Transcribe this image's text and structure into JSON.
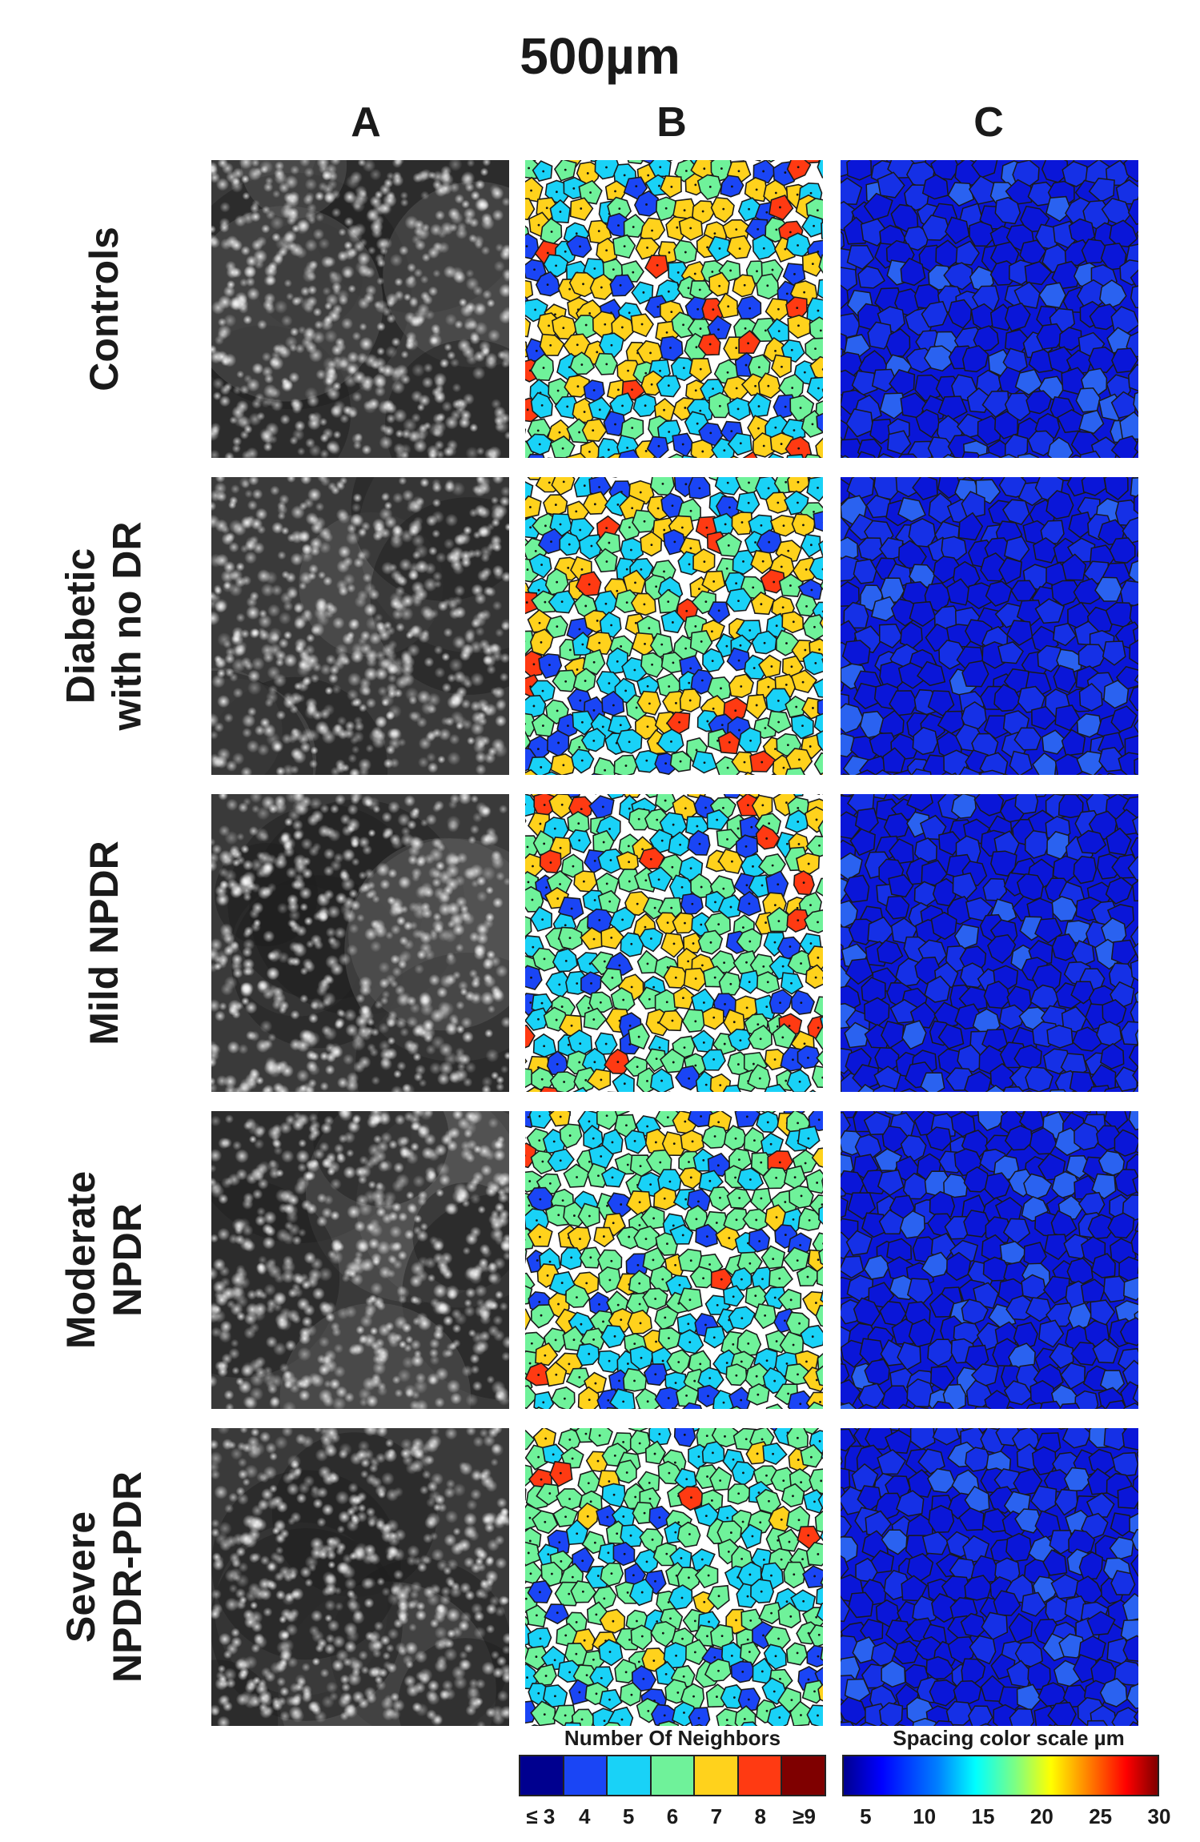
{
  "figure": {
    "title": "500µm",
    "columns": [
      "A",
      "B",
      "C"
    ],
    "rows": [
      {
        "label_lines": [
          "Controls"
        ]
      },
      {
        "label_lines": [
          "Diabetic",
          "with no DR"
        ]
      },
      {
        "label_lines": [
          "Mild NPDR"
        ]
      },
      {
        "label_lines": [
          "Moderate",
          "NPDR"
        ]
      },
      {
        "label_lines": [
          "Severe",
          "NPDR-PDR"
        ]
      }
    ]
  },
  "legend_neighbors": {
    "title": "Number Of Neighbors",
    "labels": [
      "≤ 3",
      "4",
      "5",
      "6",
      "7",
      "8",
      "≥9"
    ],
    "colors": [
      "#00008f",
      "#1a45f5",
      "#19d2f7",
      "#6ff29a",
      "#ffd21c",
      "#ff3a12",
      "#7f0000"
    ]
  },
  "legend_spacing": {
    "title": "Spacing color scale µm",
    "ticks": [
      "5",
      "10",
      "15",
      "20",
      "25",
      "30"
    ],
    "min": 5,
    "max": 30
  },
  "colors": {
    "cell_border": "#1a1a1a",
    "b_warm_weights": [
      0.65,
      0.55,
      0.45,
      0.3,
      0.12
    ],
    "c_base": "#0a16d8",
    "c_light": "#2a62f0"
  }
}
